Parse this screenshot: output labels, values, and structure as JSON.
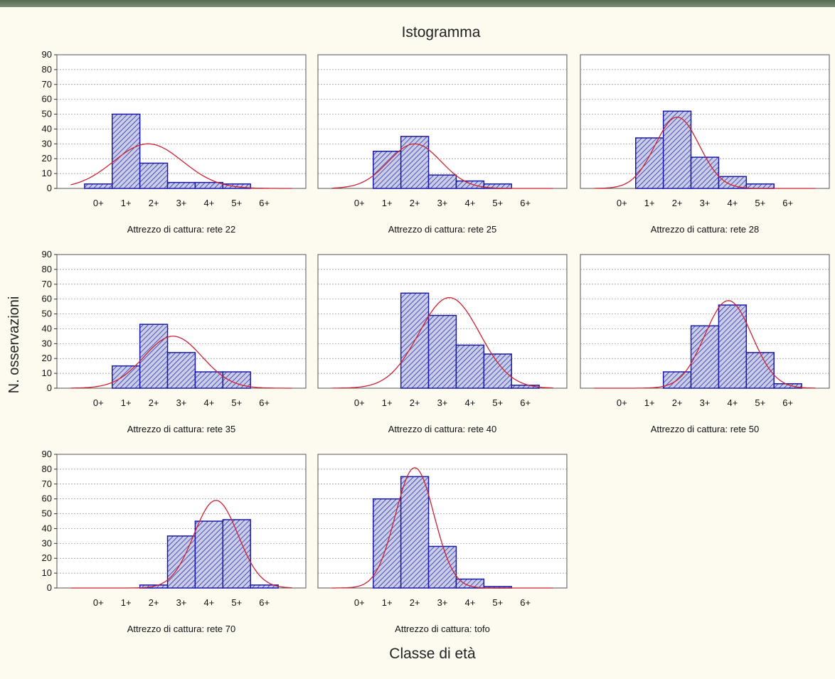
{
  "chart_data": {
    "type": "bar",
    "title": "Istogramma",
    "xlabel": "Classe di età",
    "ylabel": "N. osservazioni",
    "categories": [
      "0+",
      "1+",
      "2+",
      "3+",
      "4+",
      "5+",
      "6+"
    ],
    "ylim": [
      0,
      90
    ],
    "yticks": [
      0,
      10,
      20,
      30,
      40,
      50,
      60,
      70,
      80,
      90
    ],
    "grid": true,
    "colors": {
      "bar_fill": "#c9cde6",
      "bar_stroke": "#1a1aa8",
      "hatch": "#1a1aa8",
      "curve": "#cc2233",
      "frame": "#555555"
    },
    "panels": [
      {
        "caption": "Attrezzo di cattura: rete 22",
        "values": [
          3,
          50,
          17,
          4,
          4,
          3,
          0
        ],
        "fit": {
          "mean": 1.8,
          "sd": 1.25,
          "peak": 30
        }
      },
      {
        "caption": "Attrezzo di cattura: rete 25",
        "values": [
          0,
          25,
          35,
          9,
          5,
          3,
          0
        ],
        "fit": {
          "mean": 2.0,
          "sd": 0.95,
          "peak": 30
        }
      },
      {
        "caption": "Attrezzo di cattura: rete 28",
        "values": [
          0,
          34,
          52,
          21,
          8,
          3,
          0
        ],
        "fit": {
          "mean": 2.0,
          "sd": 0.8,
          "peak": 48
        }
      },
      {
        "caption": "Attrezzo di cattura: rete 35",
        "values": [
          0,
          15,
          43,
          24,
          11,
          11,
          0
        ],
        "fit": {
          "mean": 2.7,
          "sd": 1.05,
          "peak": 35
        }
      },
      {
        "caption": "Attrezzo di cattura: rete 40",
        "values": [
          0,
          0,
          64,
          49,
          29,
          23,
          2
        ],
        "fit": {
          "mean": 3.25,
          "sd": 1.1,
          "peak": 61
        }
      },
      {
        "caption": "Attrezzo di cattura: rete 50",
        "values": [
          0,
          0,
          11,
          42,
          56,
          24,
          3
        ],
        "fit": {
          "mean": 3.85,
          "sd": 0.85,
          "peak": 59
        }
      },
      {
        "caption": "Attrezzo di cattura: rete 70",
        "values": [
          0,
          0,
          2,
          35,
          45,
          46,
          2
        ],
        "fit": {
          "mean": 4.25,
          "sd": 0.8,
          "peak": 59
        }
      },
      {
        "caption": "Attrezzo di cattura: tofo",
        "values": [
          0,
          60,
          75,
          28,
          6,
          1,
          0
        ],
        "fit": {
          "mean": 2.0,
          "sd": 0.7,
          "peak": 81
        }
      }
    ]
  }
}
